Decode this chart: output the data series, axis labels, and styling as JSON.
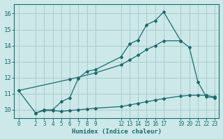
{
  "xlabel": "Humidex (Indice chaleur)",
  "bg_color": "#cce8e8",
  "grid_color": "#aacccc",
  "line_color": "#1a6b6b",
  "xlim": [
    -0.5,
    23.5
  ],
  "ylim": [
    9.5,
    16.6
  ],
  "xticks": [
    0,
    2,
    3,
    4,
    5,
    6,
    7,
    8,
    9,
    12,
    13,
    14,
    15,
    16,
    17,
    19,
    20,
    21,
    22,
    23
  ],
  "yticks": [
    10,
    11,
    12,
    13,
    14,
    15,
    16
  ],
  "curve1_x": [
    0,
    2,
    3,
    4,
    5,
    6,
    7,
    8,
    9,
    12,
    13,
    14,
    15,
    16,
    17,
    19,
    20,
    21,
    22,
    23
  ],
  "curve1_y": [
    11.2,
    9.8,
    10.0,
    10.0,
    10.5,
    10.75,
    11.95,
    12.4,
    12.5,
    13.3,
    14.1,
    14.35,
    15.3,
    15.55,
    16.1,
    14.3,
    13.9,
    11.75,
    10.8,
    10.75
  ],
  "curve2_x": [
    0,
    6,
    9,
    12,
    13,
    14,
    15,
    16,
    17,
    19
  ],
  "curve2_y": [
    11.2,
    11.9,
    12.3,
    12.8,
    13.1,
    13.4,
    13.75,
    14.0,
    14.3,
    14.3
  ],
  "curve3_x": [
    2,
    3,
    4,
    5,
    6,
    7,
    8,
    9,
    12,
    13,
    14,
    15,
    16,
    17,
    19,
    20,
    21,
    22,
    23
  ],
  "curve3_y": [
    9.8,
    9.95,
    9.95,
    9.9,
    9.95,
    10.0,
    10.05,
    10.1,
    10.2,
    10.3,
    10.4,
    10.5,
    10.6,
    10.7,
    10.85,
    10.9,
    10.9,
    10.9,
    10.8
  ]
}
